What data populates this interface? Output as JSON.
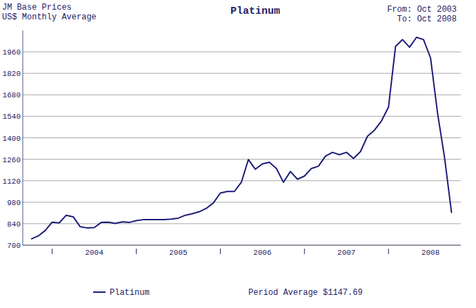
{
  "chart_data": {
    "type": "line",
    "title": "Platinum",
    "annotations": [
      "JM Base Prices",
      "US$ Monthly Average",
      "From: Oct 2003",
      "To: Oct 2008",
      "Period Average $1147.69"
    ],
    "x": [
      2003.75,
      2003.8333,
      2003.9167,
      2004,
      2004.0833,
      2004.1667,
      2004.25,
      2004.3333,
      2004.4167,
      2004.5,
      2004.5833,
      2004.6667,
      2004.75,
      2004.8333,
      2004.9167,
      2005,
      2005.0833,
      2005.1667,
      2005.25,
      2005.3333,
      2005.4167,
      2005.5,
      2005.5833,
      2005.6667,
      2005.75,
      2005.8333,
      2005.9167,
      2006,
      2006.0833,
      2006.1667,
      2006.25,
      2006.3333,
      2006.4167,
      2006.5,
      2006.5833,
      2006.6667,
      2006.75,
      2006.8333,
      2006.9167,
      2007,
      2007.0833,
      2007.1667,
      2007.25,
      2007.3333,
      2007.4167,
      2007.5,
      2007.5833,
      2007.6667,
      2007.75,
      2007.8333,
      2007.9167,
      2008,
      2008.0833,
      2008.1667,
      2008.25,
      2008.3333,
      2008.4167,
      2008.5,
      2008.5833,
      2008.6667,
      2008.75
    ],
    "series": [
      {
        "name": "Platinum",
        "color": "#1c1c78",
        "values": [
          740,
          760,
          795,
          850,
          845,
          895,
          885,
          820,
          812,
          815,
          848,
          850,
          842,
          852,
          848,
          860,
          866,
          866,
          866,
          866,
          870,
          876,
          895,
          905,
          918,
          940,
          975,
          1040,
          1050,
          1050,
          1110,
          1258,
          1195,
          1230,
          1240,
          1200,
          1110,
          1180,
          1130,
          1150,
          1200,
          1215,
          1280,
          1305,
          1290,
          1305,
          1265,
          1310,
          1410,
          1450,
          1510,
          1600,
          1995,
          2040,
          1990,
          2055,
          2040,
          1920,
          1560,
          1270,
          910
        ]
      }
    ],
    "xlim": [
      2003.65,
      2008.86
    ],
    "xticks": [
      2004,
      2005,
      2006,
      2007,
      2008
    ],
    "ylim": [
      700,
      2100
    ],
    "yticks": [
      700,
      840,
      980,
      1120,
      1260,
      1400,
      1540,
      1680,
      1820,
      1960
    ],
    "grid": true,
    "legend": "bottom"
  }
}
